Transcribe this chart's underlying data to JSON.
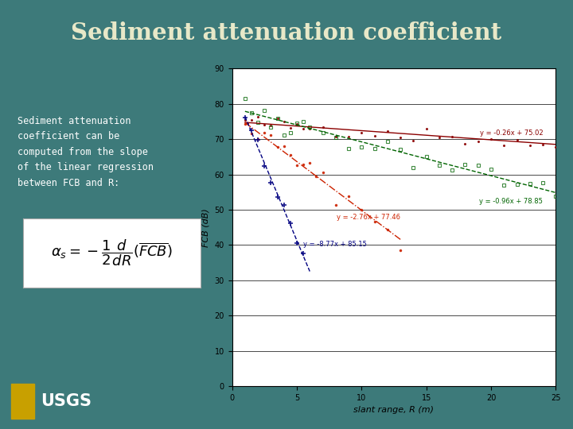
{
  "title": "Sediment attenuation coefficient",
  "title_color": "#e8e8c8",
  "slide_bg": "#3d7a7a",
  "text_left_lines": [
    "Sediment attenuation",
    "coefficient can be",
    "computed from the slope",
    "of the linear regression",
    "between FCB and R:"
  ],
  "text_color": "#ffffff",
  "plot_xlim": [
    0,
    25
  ],
  "plot_ylim": [
    0,
    90
  ],
  "plot_yticks": [
    0,
    10,
    20,
    30,
    40,
    50,
    60,
    70,
    80,
    90
  ],
  "plot_xticks": [
    0,
    5,
    10,
    15,
    20,
    25
  ],
  "xlabel": "slant range, R (m)",
  "ylabel": "FCB (dB)",
  "line1_label": "y = -0.26x + 75.02",
  "line1_slope": -0.26,
  "line1_intercept": 75.02,
  "line1_color": "#8B0000",
  "line1_xrange": [
    1,
    25
  ],
  "line2_label": "y = -0.96x + 78.85",
  "line2_slope": -0.96,
  "line2_intercept": 78.85,
  "line2_color": "#006400",
  "line2_xrange": [
    1,
    25
  ],
  "line3_label": "y = -2.76x + 77.46",
  "line3_slope": -2.76,
  "line3_intercept": 77.46,
  "line3_color": "#cc2200",
  "line3_xrange": [
    1,
    13
  ],
  "line4_label": "y = -8.77x + 85.15",
  "line4_slope": -8.77,
  "line4_intercept": 85.15,
  "line4_color": "#000080",
  "line4_xrange": [
    1,
    6
  ],
  "scatter1_x": [
    1.0,
    1.2,
    1.5,
    2.0,
    2.5,
    3.0,
    3.5,
    4.0,
    4.5,
    5.0,
    5.5,
    6.0,
    7.0,
    8.0,
    9.0,
    10.0,
    11.0,
    12.0,
    13.0,
    14.0,
    15.0,
    16.0,
    17.0,
    18.0,
    19.0,
    20.0,
    21.0,
    22.0,
    23.0,
    24.0,
    25.0
  ],
  "scatter1_color": "#8B0000",
  "scatter2_x": [
    1.0,
    1.5,
    2.0,
    2.5,
    3.0,
    3.5,
    4.0,
    4.5,
    5.0,
    5.5,
    6.0,
    7.0,
    8.0,
    9.0,
    10.0,
    11.0,
    12.0,
    13.0,
    14.0,
    15.0,
    16.0,
    17.0,
    18.0,
    19.0,
    20.0,
    21.0,
    22.0,
    23.0,
    24.0,
    25.0
  ],
  "scatter2_color": "#006400",
  "scatter3_x": [
    1.0,
    1.5,
    2.0,
    2.5,
    3.0,
    3.5,
    4.0,
    4.5,
    5.0,
    5.5,
    6.0,
    6.5,
    7.0,
    8.0,
    9.0,
    10.0,
    11.0,
    12.0,
    13.0
  ],
  "scatter3_color": "#cc2200",
  "scatter4_x": [
    1.0,
    1.5,
    2.0,
    2.5,
    3.0,
    3.5,
    4.0,
    4.5,
    5.0,
    5.5
  ],
  "scatter4_color": "#000080",
  "formula_box_color": "#ffffff"
}
